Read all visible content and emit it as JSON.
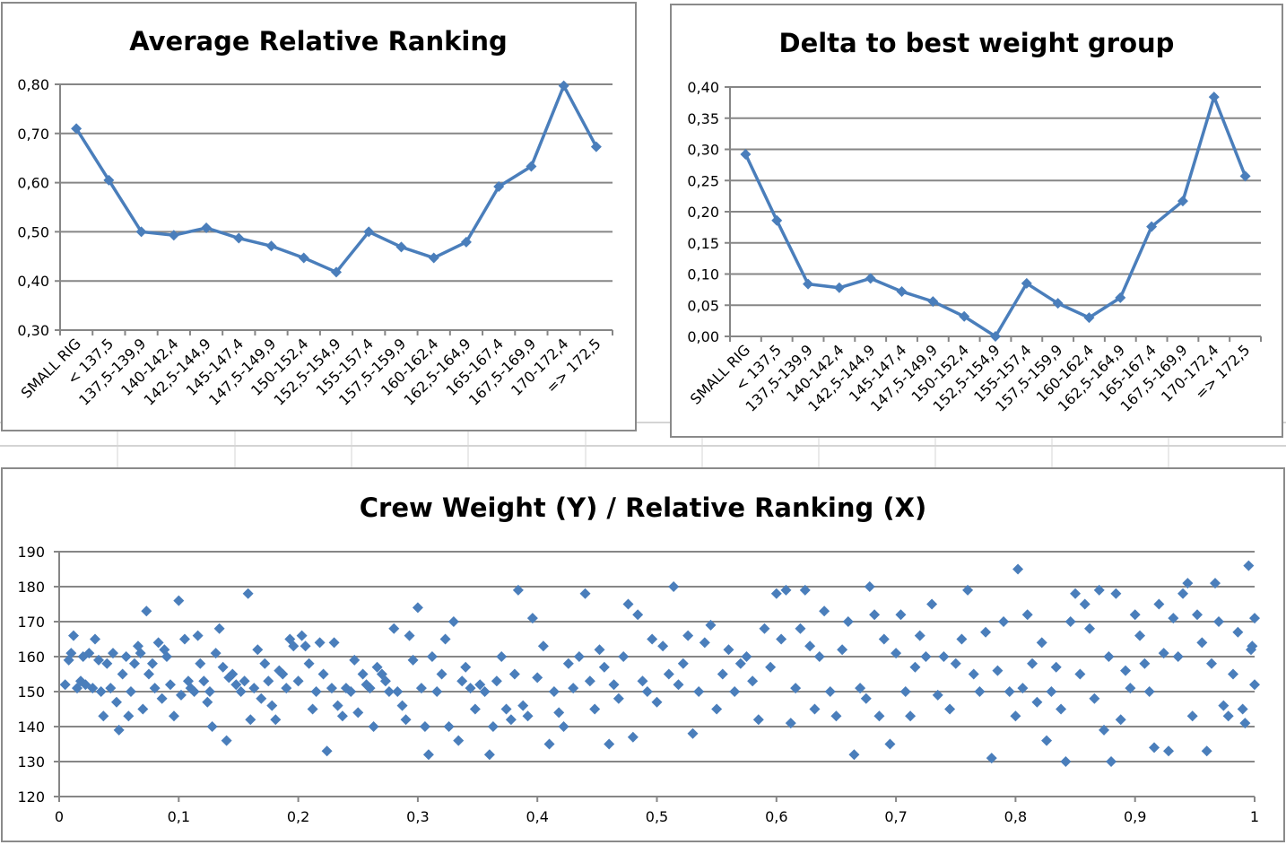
{
  "colors": {
    "series": "#4a7ebb",
    "grid": "#868686",
    "sheet_grid": "#d4d4d4"
  },
  "chart_data": [
    {
      "type": "line",
      "title": "Average Relative Ranking",
      "categories": [
        "SMALL RIG",
        "< 137,5",
        "137,5-139,9",
        "140-142,4",
        "142,5-144,9",
        "145-147,4",
        "147,5-149,9",
        "150-152,4",
        "152,5-154,9",
        "155-157,4",
        "157,5-159,9",
        "160-162,4",
        "162,5-164,9",
        "165-167,4",
        "167,5-169,9",
        "170-172,4",
        "=> 172,5"
      ],
      "values": [
        0.71,
        0.605,
        0.5,
        0.493,
        0.508,
        0.487,
        0.471,
        0.447,
        0.418,
        0.5,
        0.469,
        0.447,
        0.479,
        0.592,
        0.633,
        0.797,
        0.673
      ],
      "ylim": [
        0.3,
        0.8
      ],
      "yticks": [
        "0,30",
        "0,40",
        "0,50",
        "0,60",
        "0,70",
        "0,80"
      ],
      "grid": true,
      "marker": "diamond"
    },
    {
      "type": "line",
      "title": "Delta to best weight group",
      "categories": [
        "SMALL RIG",
        "< 137,5",
        "137,5-139,9",
        "140-142,4",
        "142,5-144,9",
        "145-147,4",
        "147,5-149,9",
        "150-152,4",
        "152,5-154,9",
        "155-157,4",
        "157,5-159,9",
        "160-162,4",
        "162,5-164,9",
        "165-167,4",
        "167,5-169,9",
        "170-172,4",
        "=> 172,5"
      ],
      "values": [
        0.292,
        0.186,
        0.084,
        0.078,
        0.093,
        0.072,
        0.056,
        0.032,
        0.0,
        0.085,
        0.053,
        0.03,
        0.062,
        0.176,
        0.217,
        0.384,
        0.257
      ],
      "ylim": [
        0.0,
        0.4
      ],
      "yticks": [
        "0,00",
        "0,05",
        "0,10",
        "0,15",
        "0,20",
        "0,25",
        "0,30",
        "0,35",
        "0,40"
      ],
      "grid": true,
      "marker": "diamond"
    },
    {
      "type": "scatter",
      "title": "Crew Weight (Y) / Relative Ranking (X)",
      "xlim": [
        0,
        1
      ],
      "ylim": [
        120,
        190
      ],
      "xticks": [
        "0",
        "0,1",
        "0,2",
        "0,3",
        "0,4",
        "0,5",
        "0,6",
        "0,7",
        "0,8",
        "0,9",
        "1"
      ],
      "yticks": [
        "120",
        "130",
        "140",
        "150",
        "160",
        "170",
        "180",
        "190"
      ],
      "grid": true,
      "marker": "diamond",
      "points": [
        [
          0.005,
          152
        ],
        [
          0.008,
          159
        ],
        [
          0.01,
          161
        ],
        [
          0.012,
          166
        ],
        [
          0.015,
          151
        ],
        [
          0.018,
          153
        ],
        [
          0.02,
          160
        ],
        [
          0.022,
          152
        ],
        [
          0.025,
          161
        ],
        [
          0.028,
          151
        ],
        [
          0.03,
          165
        ],
        [
          0.033,
          159
        ],
        [
          0.035,
          150
        ],
        [
          0.037,
          143
        ],
        [
          0.04,
          158
        ],
        [
          0.043,
          151
        ],
        [
          0.045,
          161
        ],
        [
          0.048,
          147
        ],
        [
          0.05,
          139
        ],
        [
          0.053,
          155
        ],
        [
          0.056,
          160
        ],
        [
          0.058,
          143
        ],
        [
          0.06,
          150
        ],
        [
          0.063,
          158
        ],
        [
          0.066,
          163
        ],
        [
          0.068,
          161
        ],
        [
          0.07,
          145
        ],
        [
          0.073,
          173
        ],
        [
          0.075,
          155
        ],
        [
          0.078,
          158
        ],
        [
          0.08,
          151
        ],
        [
          0.083,
          164
        ],
        [
          0.086,
          148
        ],
        [
          0.088,
          162
        ],
        [
          0.09,
          160
        ],
        [
          0.093,
          152
        ],
        [
          0.096,
          143
        ],
        [
          0.1,
          176
        ],
        [
          0.102,
          149
        ],
        [
          0.105,
          165
        ],
        [
          0.108,
          153
        ],
        [
          0.11,
          151
        ],
        [
          0.113,
          150
        ],
        [
          0.116,
          166
        ],
        [
          0.118,
          158
        ],
        [
          0.121,
          153
        ],
        [
          0.124,
          147
        ],
        [
          0.126,
          150
        ],
        [
          0.128,
          140
        ],
        [
          0.131,
          161
        ],
        [
          0.134,
          168
        ],
        [
          0.137,
          157
        ],
        [
          0.14,
          136
        ],
        [
          0.142,
          154
        ],
        [
          0.145,
          155
        ],
        [
          0.148,
          152
        ],
        [
          0.152,
          150
        ],
        [
          0.155,
          153
        ],
        [
          0.158,
          178
        ],
        [
          0.16,
          142
        ],
        [
          0.163,
          151
        ],
        [
          0.166,
          162
        ],
        [
          0.169,
          148
        ],
        [
          0.172,
          158
        ],
        [
          0.175,
          153
        ],
        [
          0.178,
          146
        ],
        [
          0.181,
          142
        ],
        [
          0.184,
          156
        ],
        [
          0.187,
          155
        ],
        [
          0.19,
          151
        ],
        [
          0.193,
          165
        ],
        [
          0.196,
          163
        ],
        [
          0.2,
          153
        ],
        [
          0.203,
          166
        ],
        [
          0.206,
          163
        ],
        [
          0.209,
          158
        ],
        [
          0.212,
          145
        ],
        [
          0.215,
          150
        ],
        [
          0.218,
          164
        ],
        [
          0.221,
          155
        ],
        [
          0.224,
          133
        ],
        [
          0.228,
          151
        ],
        [
          0.23,
          164
        ],
        [
          0.233,
          146
        ],
        [
          0.237,
          143
        ],
        [
          0.24,
          151
        ],
        [
          0.244,
          150
        ],
        [
          0.247,
          159
        ],
        [
          0.25,
          144
        ],
        [
          0.254,
          155
        ],
        [
          0.257,
          152
        ],
        [
          0.26,
          151
        ],
        [
          0.263,
          140
        ],
        [
          0.266,
          157
        ],
        [
          0.27,
          155
        ],
        [
          0.273,
          153
        ],
        [
          0.276,
          150
        ],
        [
          0.28,
          168
        ],
        [
          0.283,
          150
        ],
        [
          0.287,
          146
        ],
        [
          0.29,
          142
        ],
        [
          0.293,
          166
        ],
        [
          0.296,
          159
        ],
        [
          0.3,
          174
        ],
        [
          0.303,
          151
        ],
        [
          0.306,
          140
        ],
        [
          0.309,
          132
        ],
        [
          0.312,
          160
        ],
        [
          0.316,
          150
        ],
        [
          0.32,
          155
        ],
        [
          0.323,
          165
        ],
        [
          0.326,
          140
        ],
        [
          0.33,
          170
        ],
        [
          0.334,
          136
        ],
        [
          0.337,
          153
        ],
        [
          0.34,
          157
        ],
        [
          0.344,
          151
        ],
        [
          0.348,
          145
        ],
        [
          0.352,
          152
        ],
        [
          0.356,
          150
        ],
        [
          0.36,
          132
        ],
        [
          0.363,
          140
        ],
        [
          0.366,
          153
        ],
        [
          0.37,
          160
        ],
        [
          0.374,
          145
        ],
        [
          0.378,
          142
        ],
        [
          0.381,
          155
        ],
        [
          0.384,
          179
        ],
        [
          0.388,
          146
        ],
        [
          0.392,
          143
        ],
        [
          0.396,
          171
        ],
        [
          0.4,
          154
        ],
        [
          0.405,
          163
        ],
        [
          0.41,
          135
        ],
        [
          0.414,
          150
        ],
        [
          0.418,
          144
        ],
        [
          0.422,
          140
        ],
        [
          0.426,
          158
        ],
        [
          0.43,
          151
        ],
        [
          0.435,
          160
        ],
        [
          0.44,
          178
        ],
        [
          0.444,
          153
        ],
        [
          0.448,
          145
        ],
        [
          0.452,
          162
        ],
        [
          0.456,
          157
        ],
        [
          0.46,
          135
        ],
        [
          0.464,
          152
        ],
        [
          0.468,
          148
        ],
        [
          0.472,
          160
        ],
        [
          0.476,
          175
        ],
        [
          0.48,
          137
        ],
        [
          0.484,
          172
        ],
        [
          0.488,
          153
        ],
        [
          0.492,
          150
        ],
        [
          0.496,
          165
        ],
        [
          0.5,
          147
        ],
        [
          0.505,
          163
        ],
        [
          0.51,
          155
        ],
        [
          0.514,
          180
        ],
        [
          0.518,
          152
        ],
        [
          0.522,
          158
        ],
        [
          0.526,
          166
        ],
        [
          0.53,
          138
        ],
        [
          0.535,
          150
        ],
        [
          0.54,
          164
        ],
        [
          0.545,
          169
        ],
        [
          0.55,
          145
        ],
        [
          0.555,
          155
        ],
        [
          0.56,
          162
        ],
        [
          0.565,
          150
        ],
        [
          0.57,
          158
        ],
        [
          0.575,
          160
        ],
        [
          0.58,
          153
        ],
        [
          0.585,
          142
        ],
        [
          0.59,
          168
        ],
        [
          0.595,
          157
        ],
        [
          0.6,
          178
        ],
        [
          0.604,
          165
        ],
        [
          0.608,
          179
        ],
        [
          0.612,
          141
        ],
        [
          0.616,
          151
        ],
        [
          0.62,
          168
        ],
        [
          0.624,
          179
        ],
        [
          0.628,
          163
        ],
        [
          0.632,
          145
        ],
        [
          0.636,
          160
        ],
        [
          0.64,
          173
        ],
        [
          0.645,
          150
        ],
        [
          0.65,
          143
        ],
        [
          0.655,
          162
        ],
        [
          0.66,
          170
        ],
        [
          0.665,
          132
        ],
        [
          0.67,
          151
        ],
        [
          0.675,
          148
        ],
        [
          0.678,
          180
        ],
        [
          0.682,
          172
        ],
        [
          0.686,
          143
        ],
        [
          0.69,
          165
        ],
        [
          0.695,
          135
        ],
        [
          0.7,
          161
        ],
        [
          0.704,
          172
        ],
        [
          0.708,
          150
        ],
        [
          0.712,
          143
        ],
        [
          0.716,
          157
        ],
        [
          0.72,
          166
        ],
        [
          0.725,
          160
        ],
        [
          0.73,
          175
        ],
        [
          0.735,
          149
        ],
        [
          0.74,
          160
        ],
        [
          0.745,
          145
        ],
        [
          0.75,
          158
        ],
        [
          0.755,
          165
        ],
        [
          0.76,
          179
        ],
        [
          0.765,
          155
        ],
        [
          0.77,
          150
        ],
        [
          0.775,
          167
        ],
        [
          0.78,
          131
        ],
        [
          0.785,
          156
        ],
        [
          0.79,
          170
        ],
        [
          0.795,
          150
        ],
        [
          0.8,
          143
        ],
        [
          0.802,
          185
        ],
        [
          0.806,
          151
        ],
        [
          0.81,
          172
        ],
        [
          0.814,
          158
        ],
        [
          0.818,
          147
        ],
        [
          0.822,
          164
        ],
        [
          0.826,
          136
        ],
        [
          0.83,
          150
        ],
        [
          0.834,
          157
        ],
        [
          0.838,
          145
        ],
        [
          0.842,
          130
        ],
        [
          0.846,
          170
        ],
        [
          0.85,
          178
        ],
        [
          0.854,
          155
        ],
        [
          0.858,
          175
        ],
        [
          0.862,
          168
        ],
        [
          0.866,
          148
        ],
        [
          0.87,
          179
        ],
        [
          0.874,
          139
        ],
        [
          0.878,
          160
        ],
        [
          0.88,
          130
        ],
        [
          0.884,
          178
        ],
        [
          0.888,
          142
        ],
        [
          0.892,
          156
        ],
        [
          0.896,
          151
        ],
        [
          0.9,
          172
        ],
        [
          0.904,
          166
        ],
        [
          0.908,
          158
        ],
        [
          0.912,
          150
        ],
        [
          0.916,
          134
        ],
        [
          0.92,
          175
        ],
        [
          0.924,
          161
        ],
        [
          0.928,
          133
        ],
        [
          0.932,
          171
        ],
        [
          0.936,
          160
        ],
        [
          0.94,
          178
        ],
        [
          0.944,
          181
        ],
        [
          0.948,
          143
        ],
        [
          0.952,
          172
        ],
        [
          0.956,
          164
        ],
        [
          0.96,
          133
        ],
        [
          0.964,
          158
        ],
        [
          0.967,
          181
        ],
        [
          0.97,
          170
        ],
        [
          0.974,
          146
        ],
        [
          0.978,
          143
        ],
        [
          0.982,
          155
        ],
        [
          0.986,
          167
        ],
        [
          0.99,
          145
        ],
        [
          0.992,
          141
        ],
        [
          0.995,
          186
        ],
        [
          0.997,
          162
        ],
        [
          1.0,
          171
        ],
        [
          1.0,
          152
        ],
        [
          0.998,
          163
        ]
      ]
    }
  ]
}
